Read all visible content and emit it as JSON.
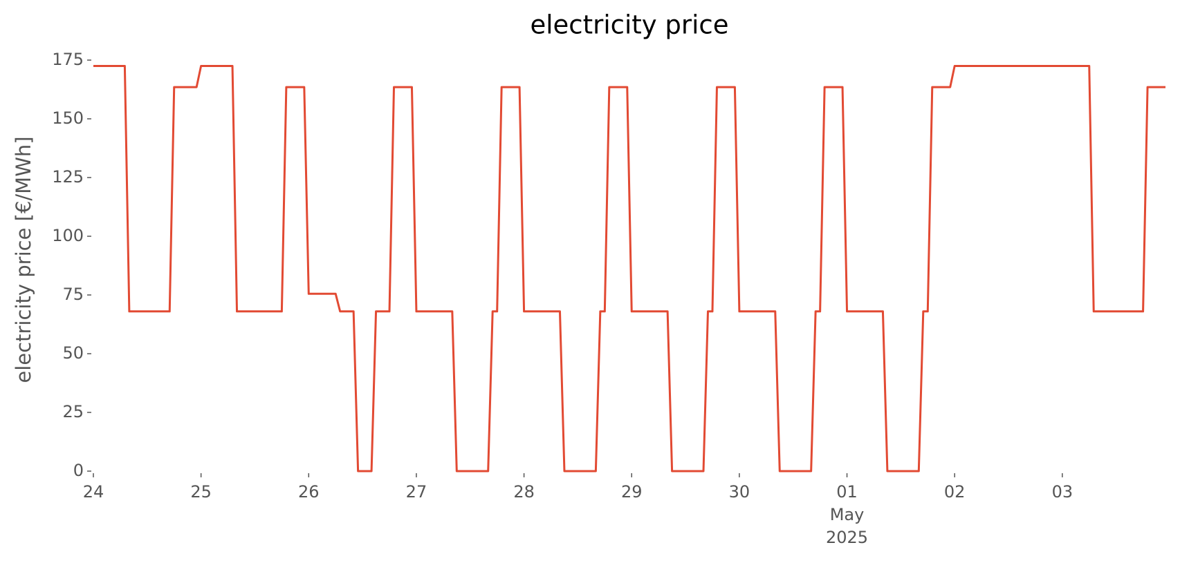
{
  "chart_data": {
    "type": "line",
    "title": "electricity price",
    "ylabel": "electricity price [€/MWh]",
    "x": [
      0,
      7,
      8,
      17,
      18,
      23,
      24,
      31,
      32,
      42,
      43,
      47,
      48,
      54,
      55,
      58,
      59,
      62,
      63,
      66,
      67,
      71,
      72,
      80,
      81,
      88,
      89,
      90,
      91,
      95,
      96,
      104,
      105,
      112,
      113,
      114,
      115,
      119,
      120,
      128,
      129,
      136,
      137,
      138,
      139,
      143,
      144,
      152,
      153,
      160,
      161,
      162,
      163,
      167,
      168,
      176,
      177,
      184,
      185,
      186,
      187,
      191,
      192,
      222,
      223,
      234,
      235,
      239
    ],
    "series": [
      {
        "color": "#e24a33",
        "values": [
          172.5,
          172.5,
          68,
          68,
          163.5,
          163.5,
          172.5,
          172.5,
          68,
          68,
          163.5,
          163.5,
          75.5,
          75.5,
          68,
          68,
          0,
          0,
          68,
          68,
          163.5,
          163.5,
          68,
          68,
          0,
          0,
          68,
          68,
          163.5,
          163.5,
          68,
          68,
          0,
          0,
          68,
          68,
          163.5,
          163.5,
          68,
          68,
          0,
          0,
          68,
          68,
          163.5,
          163.5,
          68,
          68,
          0,
          0,
          68,
          68,
          163.5,
          163.5,
          68,
          68,
          0,
          0,
          68,
          68,
          163.5,
          163.5,
          172.5,
          172.5,
          68,
          68,
          163.5,
          163.5
        ]
      }
    ],
    "xlim": [
      0,
      239
    ],
    "xticks": [
      {
        "value": 0,
        "label": "24"
      },
      {
        "value": 24,
        "label": "25"
      },
      {
        "value": 48,
        "label": "26"
      },
      {
        "value": 72,
        "label": "27"
      },
      {
        "value": 96,
        "label": "28"
      },
      {
        "value": 120,
        "label": "29"
      },
      {
        "value": 144,
        "label": "30"
      },
      {
        "value": 168,
        "label": "01\nMay\n2025"
      },
      {
        "value": 192,
        "label": "02"
      },
      {
        "value": 216,
        "label": "03"
      }
    ],
    "ylim": [
      0,
      175
    ],
    "yticks": [
      0,
      25,
      50,
      75,
      100,
      125,
      150,
      175
    ],
    "grid": false
  }
}
